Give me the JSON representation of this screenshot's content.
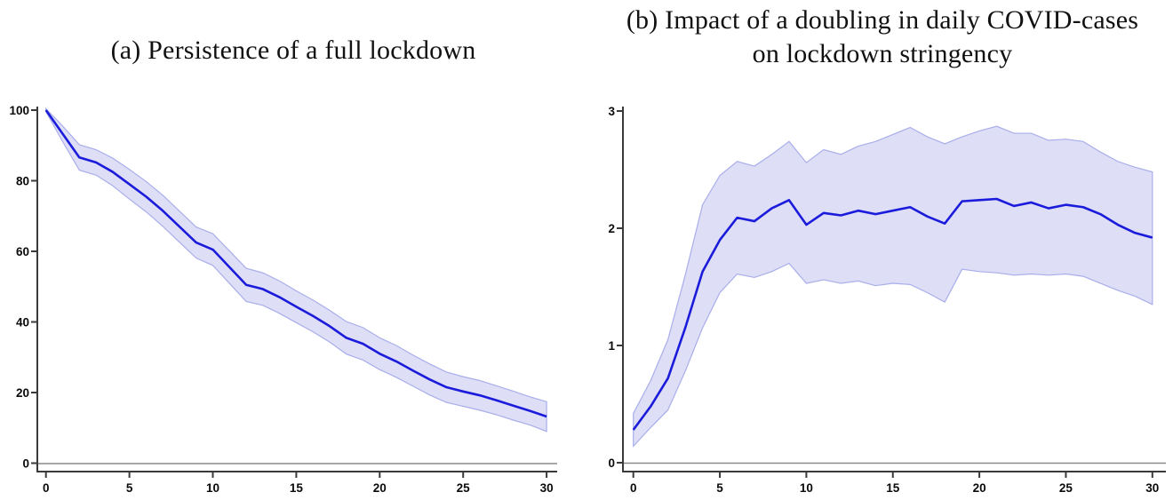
{
  "figure": {
    "panel_a": {
      "title": "(a) Persistence of a full lockdown"
    },
    "panel_b": {
      "title_line1": "(b) Impact of a doubling in daily COVID-cases",
      "title_line2": "on lockdown stringency"
    }
  },
  "style": {
    "line_color": "#1b1bdb",
    "band_fill": "#dcdcf6",
    "band_edge": "#a9aeea",
    "zero_line_color": "#8a8a8a",
    "axis_color": "#3a3a3a",
    "tick_label_color": "#0a0a0a"
  },
  "chart_data": [
    {
      "id": "a",
      "type": "line",
      "title": "(a) Persistence of a full lockdown",
      "xlabel": "",
      "ylabel": "",
      "xlim": [
        0,
        30
      ],
      "ylim": [
        0,
        100
      ],
      "xticks": [
        0,
        5,
        10,
        15,
        20,
        25,
        30
      ],
      "yticks": [
        0,
        20,
        40,
        60,
        80,
        100
      ],
      "grid": "zero-line-only",
      "legend": "none",
      "x": [
        0,
        1,
        2,
        3,
        4,
        5,
        6,
        7,
        8,
        9,
        10,
        11,
        12,
        13,
        14,
        15,
        16,
        17,
        18,
        19,
        20,
        21,
        22,
        23,
        24,
        25,
        26,
        27,
        28,
        29,
        30
      ],
      "series": [
        {
          "name": "impulse-response",
          "values": [
            100,
            93.3,
            86.6,
            85.2,
            82.5,
            79,
            75.5,
            71.5,
            67,
            62.5,
            60.5,
            55.5,
            50.5,
            49.3,
            47,
            44.3,
            41.7,
            38.8,
            35.5,
            33.8,
            31,
            28.8,
            26.2,
            23.7,
            21.5,
            20.3,
            19.2,
            17.8,
            16.3,
            14.8,
            13.2
          ]
        }
      ],
      "band": {
        "name": "confidence-interval",
        "lower": [
          99.6,
          91.1,
          83.0,
          81.6,
          78.6,
          74.8,
          71.2,
          67.1,
          62.6,
          58.1,
          56.0,
          50.9,
          45.8,
          44.7,
          42.4,
          39.8,
          37.2,
          34.3,
          30.9,
          29.2,
          26.5,
          24.3,
          21.8,
          19.3,
          17.2,
          16.1,
          15.0,
          13.7,
          12.2,
          10.8,
          9.0
        ],
        "upper": [
          100.4,
          95.5,
          90.2,
          88.8,
          86.4,
          83.2,
          79.8,
          75.9,
          71.4,
          66.9,
          65.0,
          60.1,
          55.2,
          53.9,
          51.6,
          48.8,
          46.2,
          43.3,
          40.1,
          38.4,
          35.5,
          33.3,
          30.6,
          28.1,
          25.8,
          24.5,
          23.4,
          21.9,
          20.4,
          18.8,
          17.4
        ]
      }
    },
    {
      "id": "b",
      "type": "line",
      "title": "(b) Impact of a doubling in daily COVID-cases on lockdown stringency",
      "xlabel": "",
      "ylabel": "",
      "xlim": [
        0,
        30
      ],
      "ylim": [
        0,
        3
      ],
      "xticks": [
        0,
        5,
        10,
        15,
        20,
        25,
        30
      ],
      "yticks": [
        0,
        1,
        2,
        3
      ],
      "grid": "zero-line-only",
      "legend": "none",
      "x": [
        0,
        1,
        2,
        3,
        4,
        5,
        6,
        7,
        8,
        9,
        10,
        11,
        12,
        13,
        14,
        15,
        16,
        17,
        18,
        19,
        20,
        21,
        22,
        23,
        24,
        25,
        26,
        27,
        28,
        29,
        30
      ],
      "series": [
        {
          "name": "impulse-response",
          "values": [
            0.28,
            0.48,
            0.72,
            1.15,
            1.63,
            1.9,
            2.09,
            2.06,
            2.17,
            2.24,
            2.03,
            2.13,
            2.11,
            2.15,
            2.12,
            2.15,
            2.18,
            2.1,
            2.04,
            2.23,
            2.24,
            2.25,
            2.19,
            2.22,
            2.17,
            2.2,
            2.18,
            2.12,
            2.03,
            1.96,
            1.92
          ]
        }
      ],
      "band": {
        "name": "confidence-interval",
        "lower": [
          0.14,
          0.3,
          0.45,
          0.78,
          1.15,
          1.45,
          1.61,
          1.58,
          1.63,
          1.7,
          1.53,
          1.56,
          1.53,
          1.55,
          1.51,
          1.53,
          1.52,
          1.45,
          1.37,
          1.65,
          1.63,
          1.62,
          1.6,
          1.61,
          1.6,
          1.61,
          1.59,
          1.53,
          1.47,
          1.42,
          1.35
        ],
        "upper": [
          0.42,
          0.7,
          1.05,
          1.6,
          2.2,
          2.45,
          2.57,
          2.53,
          2.63,
          2.74,
          2.56,
          2.67,
          2.63,
          2.7,
          2.74,
          2.8,
          2.86,
          2.78,
          2.72,
          2.78,
          2.83,
          2.87,
          2.81,
          2.81,
          2.75,
          2.76,
          2.74,
          2.65,
          2.57,
          2.52,
          2.48
        ]
      }
    }
  ]
}
